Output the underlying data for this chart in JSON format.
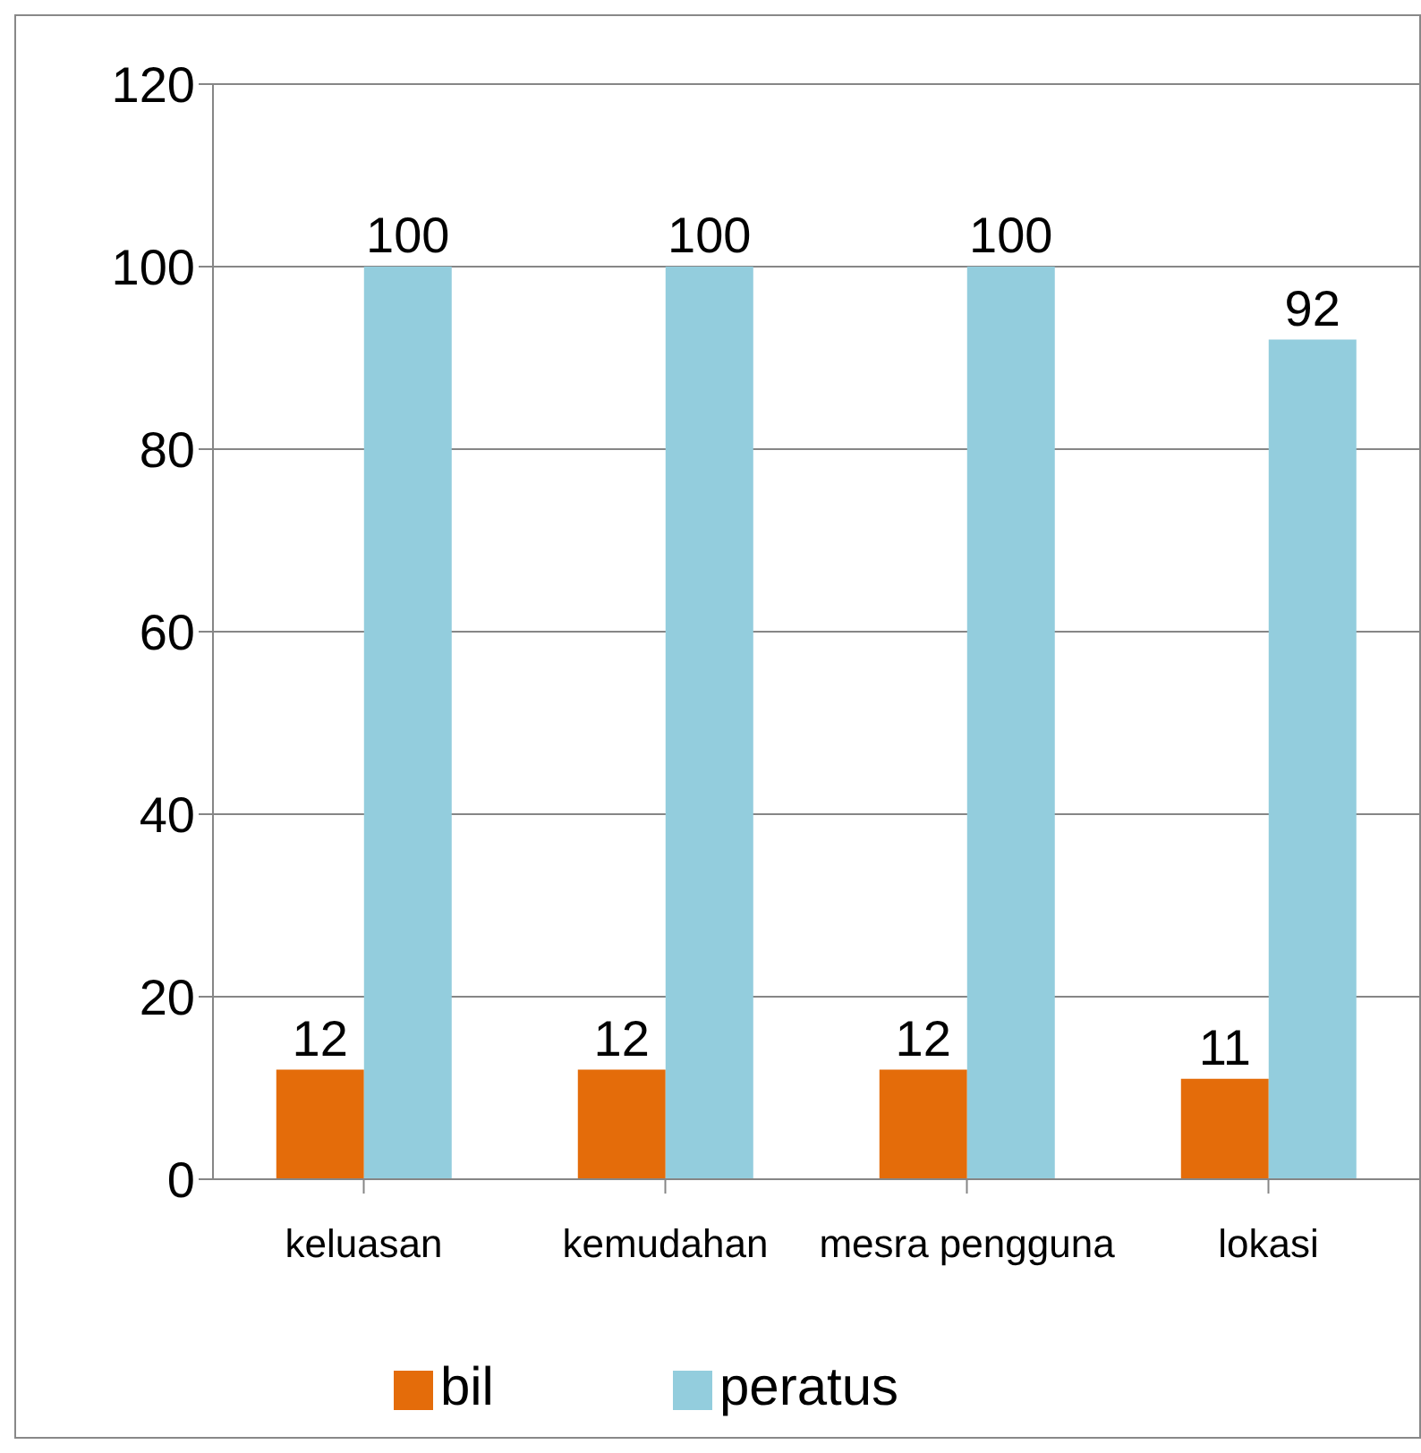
{
  "chart_data": {
    "type": "bar",
    "categories": [
      "keluasan",
      "kemudahan",
      "mesra pengguna",
      "lokasi"
    ],
    "series": [
      {
        "name": "bil",
        "color": "#e46c0a",
        "values": [
          12,
          12,
          12,
          11
        ]
      },
      {
        "name": "peratus",
        "color": "#93cddd",
        "values": [
          100,
          100,
          100,
          92
        ]
      }
    ],
    "ylim": [
      0,
      120
    ],
    "yticks": [
      0,
      20,
      40,
      60,
      80,
      100,
      120
    ],
    "grid": "y",
    "legend": "bottom",
    "data_labels": true
  }
}
